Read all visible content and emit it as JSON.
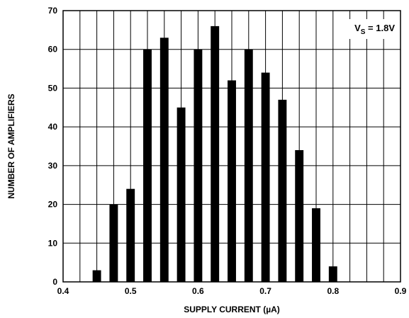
{
  "chart_data": {
    "type": "bar",
    "title": "",
    "xlabel": "SUPPLY CURRENT (µA)",
    "ylabel": "NUMBER OF AMPLIFIERS",
    "xlim": [
      0.4,
      0.9
    ],
    "ylim": [
      0,
      70
    ],
    "xticks": [
      "0.4",
      "0.5",
      "0.6",
      "0.7",
      "0.8",
      "0.9"
    ],
    "yticks": [
      "0",
      "10",
      "20",
      "30",
      "40",
      "50",
      "60",
      "70"
    ],
    "x_minor_step": 0.025,
    "grid": true,
    "annotation": {
      "main": "V",
      "sub": "S",
      "rest": " = 1.8V",
      "placement": "top-right"
    },
    "bar_width": 0.0125,
    "x": [
      0.45,
      0.475,
      0.5,
      0.525,
      0.55,
      0.575,
      0.6,
      0.625,
      0.65,
      0.675,
      0.7,
      0.725,
      0.75,
      0.775,
      0.8
    ],
    "values": [
      3,
      20,
      24,
      60,
      63,
      45,
      60,
      66,
      52,
      60,
      54,
      47,
      34,
      19,
      4
    ],
    "colors": {
      "bar": "#000000",
      "grid": "#000000"
    }
  }
}
